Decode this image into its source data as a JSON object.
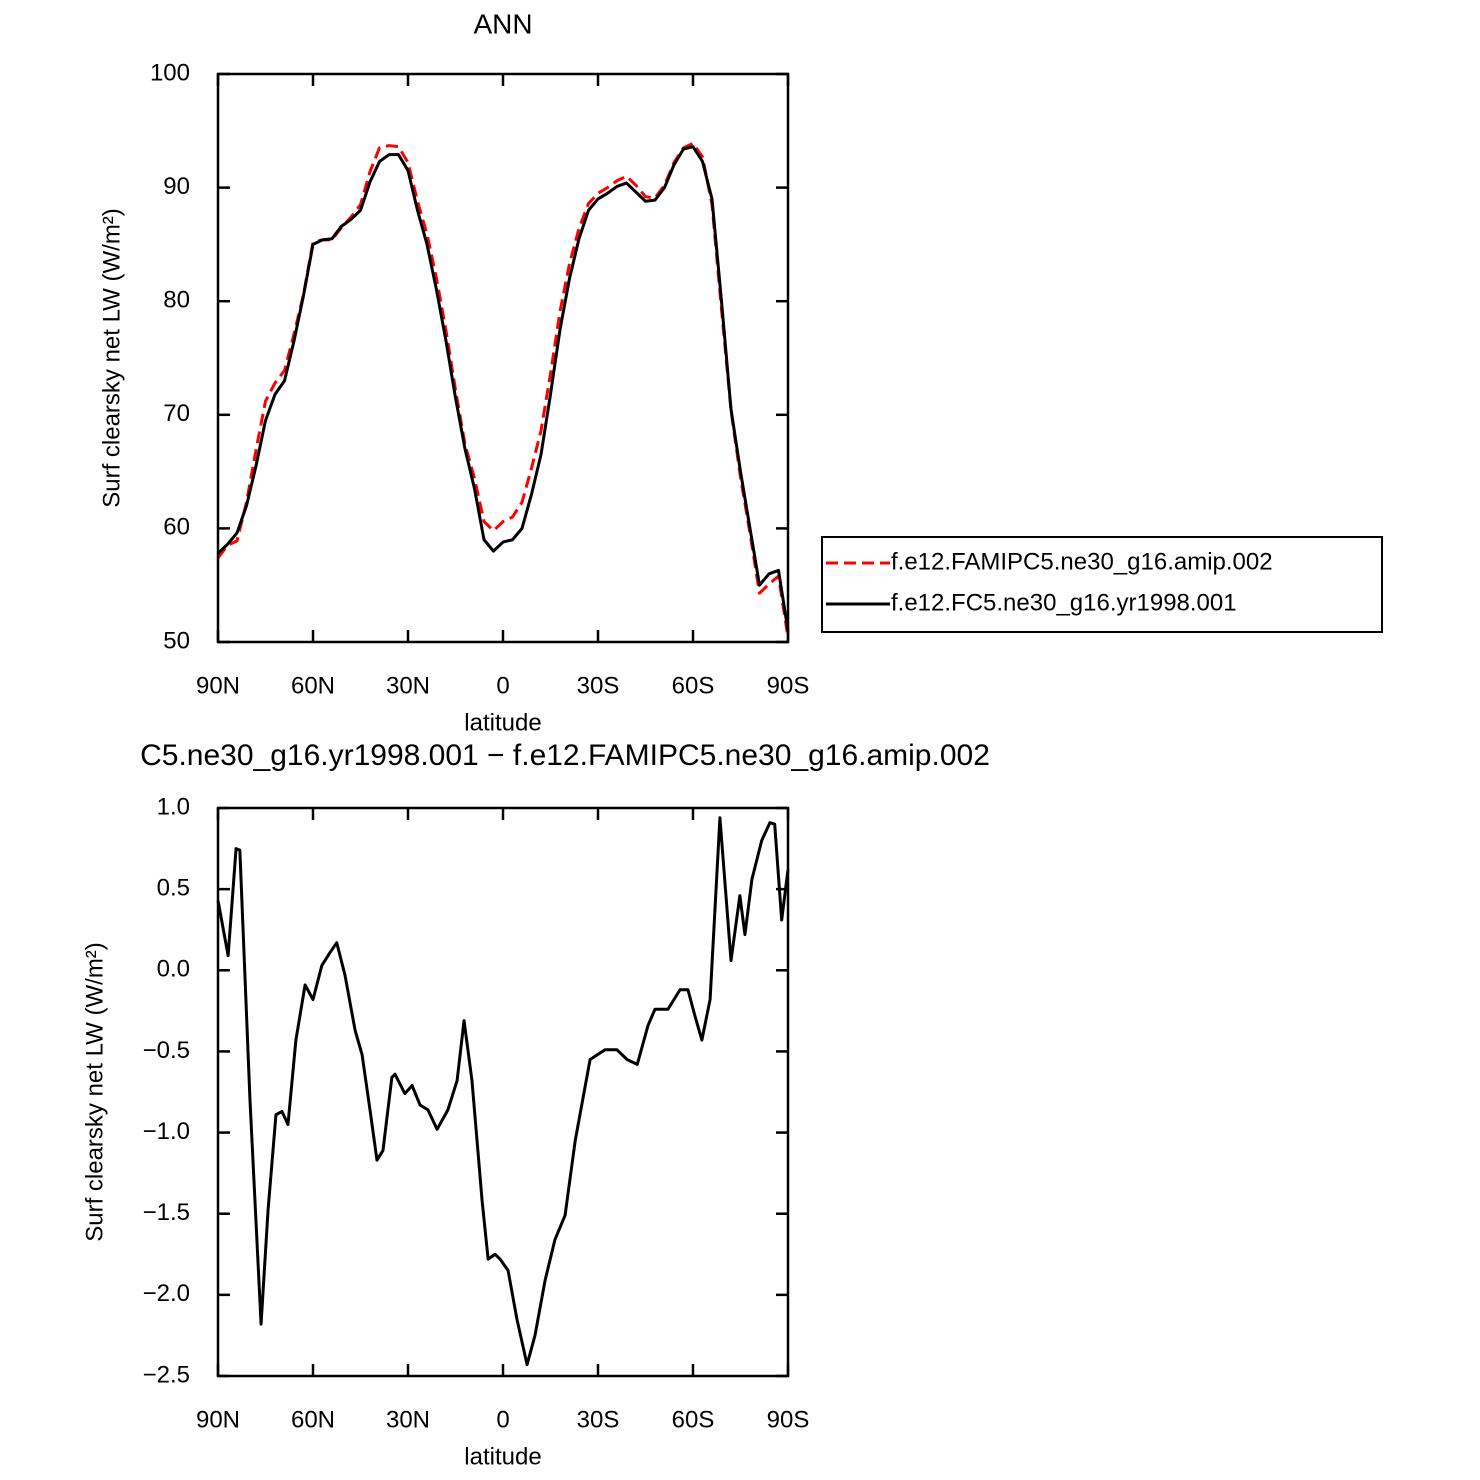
{
  "chart_data": [
    {
      "type": "line",
      "title": "ANN",
      "x_label": "latitude",
      "y_label": "Surf clearsky net LW (W/m²)",
      "x": [
        90,
        87,
        84,
        81,
        78,
        75,
        72,
        69,
        66,
        63,
        60,
        57,
        54,
        51,
        48,
        45,
        42,
        39,
        36,
        33,
        30,
        27,
        24,
        21,
        18,
        15,
        12,
        9,
        6,
        3,
        0,
        -3,
        -6,
        -9,
        -12,
        -15,
        -18,
        -21,
        -24,
        -27,
        -30,
        -33,
        -36,
        -39,
        -42,
        -45,
        -48,
        -51,
        -54,
        -57,
        -60,
        -63,
        -66,
        -69,
        -72,
        -75,
        -78,
        -81,
        -84,
        -87,
        -90
      ],
      "xlim": [
        90,
        -90
      ],
      "xticks": [
        {
          "value": 90,
          "label": "90N"
        },
        {
          "value": 60,
          "label": "60N"
        },
        {
          "value": 30,
          "label": "30N"
        },
        0,
        {
          "value": -30,
          "label": "30S"
        },
        {
          "value": -60,
          "label": "60S"
        },
        {
          "value": -90,
          "label": "90S"
        }
      ],
      "ylim": [
        50,
        100
      ],
      "yticks": [
        50,
        60,
        70,
        80,
        90,
        100
      ],
      "legend": "right",
      "series": [
        {
          "name": "f.e12.FAMIPC5.ne30_g16.amip.002",
          "color": "#ff0000",
          "line_style": "dashed",
          "values": [
            57.4,
            58.5,
            58.9,
            62.3,
            66.9,
            71.2,
            72.8,
            73.9,
            77.1,
            80.6,
            85.2,
            85.4,
            85.4,
            86.5,
            87.4,
            88.5,
            91.4,
            93.5,
            93.7,
            93.6,
            92.2,
            88.8,
            85.9,
            82,
            77.4,
            72.2,
            67.4,
            64.4,
            60.6,
            59.8,
            60.6,
            61,
            62.3,
            65.3,
            68.6,
            73.6,
            79.1,
            83.3,
            86.4,
            88.6,
            89.5,
            90,
            90.6,
            91,
            90.2,
            89.2,
            89.1,
            90.2,
            92.2,
            93.5,
            93.9,
            92.7,
            88.5,
            79.3,
            70.4,
            64.5,
            59.6,
            54.3,
            55.1,
            55.8,
            50.4
          ]
        },
        {
          "name": "f.e12.FC5.ne30_g16.yr1998.001",
          "color": "#000000",
          "line_style": "solid",
          "values": [
            57.8,
            58.6,
            59.6,
            62,
            65.5,
            69.5,
            71.8,
            73,
            76.5,
            80.5,
            85,
            85.4,
            85.5,
            86.6,
            87.2,
            88,
            90.5,
            92.3,
            92.9,
            92.9,
            91.5,
            88,
            85,
            81,
            76.5,
            71.5,
            67,
            63.5,
            59,
            58,
            58.8,
            59,
            60,
            63,
            66.5,
            71.8,
            77.5,
            82,
            85.5,
            88,
            89,
            89.5,
            90.1,
            90.4,
            89.6,
            88.8,
            88.9,
            90,
            92,
            93.4,
            93.6,
            92.3,
            89,
            80,
            70.5,
            65,
            60,
            55,
            56,
            56.3,
            51
          ]
        }
      ]
    },
    {
      "type": "line",
      "title": "C5.ne30_g16.yr1998.001 − f.e12.FAMIPC5.ne30_g16.amip.002",
      "x_label": "latitude",
      "y_label": "Surf clearsky net LW (W/m²)",
      "x": [
        90,
        86.8,
        84.3,
        83.1,
        79.9,
        76.4,
        74.2,
        71.7,
        69.8,
        67.9,
        65.4,
        62.5,
        60,
        57.2,
        54.6,
        52.5,
        49.9,
        46.7,
        44.5,
        42,
        39.8,
        37.9,
        35.1,
        34.1,
        31,
        28.7,
        26.2,
        23.7,
        20.8,
        17.4,
        14.5,
        12.3,
        9.8,
        6.6,
        4.7,
        2.5,
        0.9,
        -1.6,
        -4.4,
        -7.6,
        -10.1,
        -13.3,
        -16.4,
        -19.6,
        -22.8,
        -27.5,
        -32.2,
        -36,
        -39.2,
        -42.4,
        -45.8,
        -48,
        -52.1,
        -55.9,
        -58.4,
        -60.6,
        -62.8,
        -65.4,
        -68.5,
        -72,
        -74.8,
        -76.4,
        -78.6,
        -81.7,
        -84.3,
        -85.8,
        -88,
        -90
      ],
      "xlim": [
        90,
        -90
      ],
      "xticks": [
        {
          "value": 90,
          "label": "90N"
        },
        {
          "value": 60,
          "label": "60N"
        },
        {
          "value": 30,
          "label": "30N"
        },
        0,
        {
          "value": -30,
          "label": "30S"
        },
        {
          "value": -60,
          "label": "60S"
        },
        {
          "value": -90,
          "label": "90S"
        }
      ],
      "ylim": [
        -2.5,
        1
      ],
      "yticks": [
        {
          "value": -2.5,
          "label": "−2.5"
        },
        {
          "value": -2,
          "label": "−2.0"
        },
        {
          "value": -1.5,
          "label": "−1.5"
        },
        {
          "value": -1,
          "label": "−1.0"
        },
        {
          "value": -0.5,
          "label": "−0.5"
        },
        {
          "value": 0,
          "label": "0.0"
        },
        0.5,
        {
          "value": 1,
          "label": "1.0"
        }
      ],
      "series": [
        {
          "color": "#000000",
          "line_style": "solid",
          "values": [
            0.43,
            0.09,
            0.75,
            0.74,
            -0.8,
            -2.18,
            -1.48,
            -0.89,
            -0.87,
            -0.95,
            -0.43,
            -0.09,
            -0.18,
            0.03,
            0.11,
            0.17,
            -0.03,
            -0.37,
            -0.52,
            -0.86,
            -1.17,
            -1.11,
            -0.66,
            -0.64,
            -0.76,
            -0.71,
            -0.83,
            -0.86,
            -0.98,
            -0.86,
            -0.68,
            -0.31,
            -0.68,
            -1.42,
            -1.78,
            -1.75,
            -1.78,
            -1.85,
            -2.15,
            -2.43,
            -2.25,
            -1.91,
            -1.66,
            -1.51,
            -1.05,
            -0.55,
            -0.49,
            -0.49,
            -0.55,
            -0.58,
            -0.34,
            -0.24,
            -0.24,
            -0.12,
            -0.12,
            -0.28,
            -0.43,
            -0.18,
            0.94,
            0.06,
            0.46,
            0.22,
            0.56,
            0.8,
            0.91,
            0.9,
            0.31,
            0.62
          ]
        }
      ]
    }
  ]
}
